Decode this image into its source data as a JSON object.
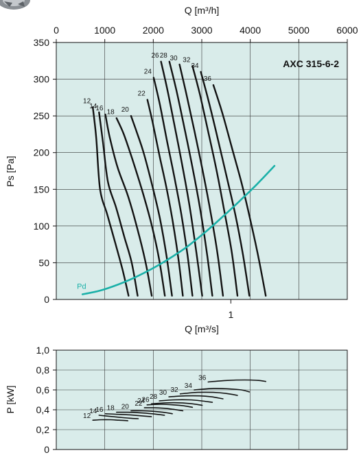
{
  "chart_data": [
    {
      "type": "line",
      "title": "AXC 315-6-2",
      "xlabel_top": "Q [m³/h]",
      "xlabel": "Q [m³/s]",
      "ylabel": "Ps [Pa]",
      "xlim_m3h": [
        0,
        6000
      ],
      "xlim": [
        0,
        1.667
      ],
      "ylim": [
        0,
        350
      ],
      "x_top_ticks": [
        "0",
        "1000",
        "2000",
        "3000",
        "4000",
        "5000",
        "6000"
      ],
      "x_bottom_ticks": [
        "1"
      ],
      "y_ticks": [
        "0",
        "50",
        "100",
        "150",
        "200",
        "250",
        "300",
        "350"
      ],
      "grid": true,
      "background": "#d9ecea",
      "series": [
        {
          "name": "12",
          "x": [
            0.209,
            0.229,
            0.251,
            0.293,
            0.34,
            0.38,
            0.414
          ],
          "y": [
            262,
            220,
            150,
            115,
            75,
            40,
            5
          ]
        },
        {
          "name": "14",
          "x": [
            0.245,
            0.267,
            0.296,
            0.343,
            0.39,
            0.432,
            0.466
          ],
          "y": [
            255,
            215,
            160,
            125,
            85,
            50,
            5
          ]
        },
        {
          "name": "16",
          "x": [
            0.281,
            0.307,
            0.351,
            0.412,
            0.466,
            0.512,
            0.547
          ],
          "y": [
            252,
            220,
            180,
            140,
            95,
            50,
            5
          ]
        },
        {
          "name": "18",
          "x": [
            0.345,
            0.387,
            0.437,
            0.496,
            0.548,
            0.589,
            0.622
          ],
          "y": [
            247,
            225,
            190,
            145,
            100,
            55,
            5
          ]
        },
        {
          "name": "20",
          "x": [
            0.428,
            0.458,
            0.5,
            0.55,
            0.594,
            0.631,
            0.663
          ],
          "y": [
            250,
            230,
            200,
            155,
            110,
            60,
            5
          ]
        },
        {
          "name": "22",
          "x": [
            0.522,
            0.553,
            0.592,
            0.633,
            0.668,
            0.7,
            0.725
          ],
          "y": [
            272,
            240,
            195,
            150,
            105,
            55,
            5
          ]
        },
        {
          "name": "24",
          "x": [
            0.558,
            0.594,
            0.635,
            0.678,
            0.717,
            0.752,
            0.78
          ],
          "y": [
            302,
            265,
            215,
            165,
            115,
            60,
            5
          ]
        },
        {
          "name": "26",
          "x": [
            0.6,
            0.637,
            0.679,
            0.724,
            0.765,
            0.802,
            0.836
          ],
          "y": [
            324,
            285,
            235,
            180,
            125,
            65,
            5
          ]
        },
        {
          "name": "28",
          "x": [
            0.648,
            0.688,
            0.733,
            0.78,
            0.823,
            0.862,
            0.894
          ],
          "y": [
            324,
            285,
            235,
            180,
            125,
            65,
            5
          ]
        },
        {
          "name": "30",
          "x": [
            0.706,
            0.745,
            0.791,
            0.839,
            0.883,
            0.922,
            0.955
          ],
          "y": [
            320,
            280,
            230,
            175,
            120,
            65,
            5
          ]
        },
        {
          "name": "32",
          "x": [
            0.78,
            0.822,
            0.869,
            0.919,
            0.963,
            1.005,
            1.038
          ],
          "y": [
            318,
            280,
            230,
            175,
            120,
            65,
            5
          ]
        },
        {
          "name": "34",
          "x": [
            0.828,
            0.873,
            0.924,
            0.978,
            1.026,
            1.07,
            1.106
          ],
          "y": [
            310,
            270,
            220,
            165,
            115,
            60,
            5
          ]
        },
        {
          "name": "36",
          "x": [
            0.9,
            0.95,
            1.002,
            1.06,
            1.11,
            1.156,
            1.2
          ],
          "y": [
            292,
            255,
            210,
            160,
            110,
            60,
            5
          ]
        },
        {
          "name": "Pd",
          "x": [
            0.15,
            0.25,
            0.35,
            0.45,
            0.55,
            0.65,
            0.75,
            0.85,
            0.95,
            1.05,
            1.15,
            1.25
          ],
          "y": [
            7,
            12,
            20,
            30,
            42,
            56,
            72,
            91,
            112,
            134,
            157,
            182
          ]
        }
      ]
    },
    {
      "type": "line",
      "ylabel": "P [kW]",
      "xlim": [
        0,
        1.667
      ],
      "ylim": [
        0,
        1.0
      ],
      "y_ticks": [
        "0",
        "0,2",
        "0,4",
        "0,6",
        "0,8",
        "1,0"
      ],
      "grid": true,
      "background": "#d9ecea",
      "series": [
        {
          "name": "12",
          "x": [
            0.209,
            0.26,
            0.31,
            0.36,
            0.41
          ],
          "y": [
            0.295,
            0.3,
            0.3,
            0.295,
            0.29
          ]
        },
        {
          "name": "14",
          "x": [
            0.245,
            0.3,
            0.36,
            0.42,
            0.47
          ],
          "y": [
            0.345,
            0.335,
            0.325,
            0.315,
            0.31
          ]
        },
        {
          "name": "16",
          "x": [
            0.281,
            0.34,
            0.41,
            0.48,
            0.545
          ],
          "y": [
            0.36,
            0.355,
            0.35,
            0.34,
            0.33
          ]
        },
        {
          "name": "18",
          "x": [
            0.345,
            0.41,
            0.48,
            0.55,
            0.62
          ],
          "y": [
            0.375,
            0.375,
            0.37,
            0.36,
            0.345
          ]
        },
        {
          "name": "20",
          "x": [
            0.428,
            0.49,
            0.55,
            0.61,
            0.665
          ],
          "y": [
            0.39,
            0.39,
            0.385,
            0.375,
            0.36
          ]
        },
        {
          "name": "22",
          "x": [
            0.505,
            0.56,
            0.62,
            0.67,
            0.725
          ],
          "y": [
            0.42,
            0.42,
            0.415,
            0.405,
            0.39
          ]
        },
        {
          "name": "24",
          "x": [
            0.52,
            0.6,
            0.67,
            0.73,
            0.78
          ],
          "y": [
            0.45,
            0.455,
            0.45,
            0.44,
            0.425
          ]
        },
        {
          "name": "26",
          "x": [
            0.545,
            0.63,
            0.71,
            0.78,
            0.836
          ],
          "y": [
            0.46,
            0.47,
            0.47,
            0.46,
            0.445
          ]
        },
        {
          "name": "28",
          "x": [
            0.59,
            0.68,
            0.76,
            0.83,
            0.894
          ],
          "y": [
            0.49,
            0.5,
            0.5,
            0.49,
            0.475
          ]
        },
        {
          "name": "30",
          "x": [
            0.645,
            0.74,
            0.82,
            0.89,
            0.955
          ],
          "y": [
            0.53,
            0.54,
            0.54,
            0.53,
            0.51
          ]
        },
        {
          "name": "32",
          "x": [
            0.71,
            0.81,
            0.9,
            0.97,
            1.038
          ],
          "y": [
            0.56,
            0.575,
            0.575,
            0.565,
            0.545
          ]
        },
        {
          "name": "34",
          "x": [
            0.79,
            0.9,
            0.99,
            1.06,
            1.106
          ],
          "y": [
            0.6,
            0.615,
            0.61,
            0.6,
            0.58
          ]
        },
        {
          "name": "36",
          "x": [
            0.87,
            0.98,
            1.08,
            1.16,
            1.2
          ],
          "y": [
            0.68,
            0.695,
            0.7,
            0.695,
            0.685
          ]
        }
      ]
    }
  ],
  "colors": {
    "plot_bg": "#d9ecea",
    "curve": "#111111",
    "pd_curve": "#1ab0a8",
    "grid": "#333333"
  },
  "icon": "fan-icon"
}
